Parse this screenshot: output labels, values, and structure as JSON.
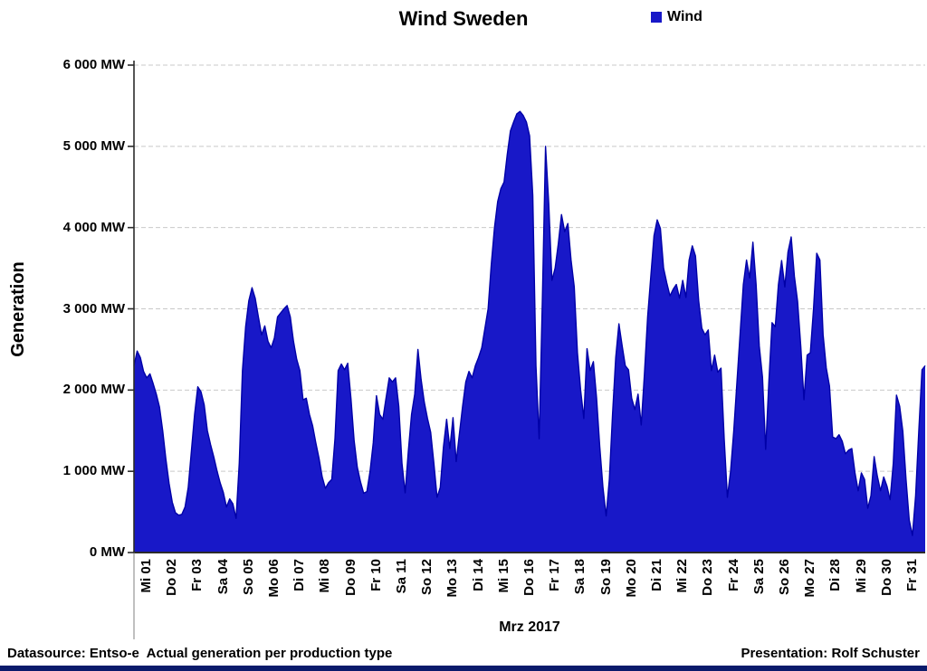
{
  "title": "Wind Sweden",
  "legend": {
    "label": "Wind",
    "color": "#1818C8"
  },
  "y_axis": {
    "title": "Generation",
    "tick_labels": [
      "6 000 MW",
      "5 000 MW",
      "4 000 MW",
      "3 000 MW",
      "2 000 MW",
      "1 000 MW",
      "0 MW"
    ]
  },
  "x_axis": {
    "title": "Mrz 2017",
    "tick_labels": [
      "Mi 01",
      "Do 02",
      "Fr 03",
      "Sa 04",
      "So 05",
      "Mo 06",
      "Di 07",
      "Mi 08",
      "Do 09",
      "Fr 10",
      "Sa 11",
      "So 12",
      "Mo 13",
      "Di 14",
      "Mi 15",
      "Do 16",
      "Fr 17",
      "Sa 18",
      "So 19",
      "Mo 20",
      "Di 21",
      "Mi 22",
      "Do 23",
      "Fr 24",
      "Sa 25",
      "So 26",
      "Mo 27",
      "Di 28",
      "Mi 29",
      "Do 30",
      "Fr 31"
    ]
  },
  "footer": {
    "left": "Datasource: Entso-e  Actual generation per production type",
    "right": "Presentation: Rolf Schuster"
  },
  "colors": {
    "area_fill": "#1818C8",
    "area_edge": "#0000A8",
    "gridline": "#C9C9C9",
    "axis": "#2B2B2B",
    "bottom_bar": "#0A1A6B"
  },
  "chart_data": {
    "type": "area",
    "title": "Wind Sweden",
    "xlabel": "Mrz 2017",
    "ylabel": "Generation",
    "unit": "MW",
    "ylim": [
      0,
      6000
    ],
    "y_ticks": [
      0,
      1000,
      2000,
      3000,
      4000,
      5000,
      6000
    ],
    "grid": "dashed horizontal",
    "legend_position": "top-right",
    "categories": [
      "Mi 01",
      "Do 02",
      "Fr 03",
      "Sa 04",
      "So 05",
      "Mo 06",
      "Di 07",
      "Mi 08",
      "Do 09",
      "Fr 10",
      "Sa 11",
      "So 12",
      "Mo 13",
      "Di 14",
      "Mi 15",
      "Do 16",
      "Fr 17",
      "Sa 18",
      "So 19",
      "Mo 20",
      "Di 21",
      "Mi 22",
      "Do 23",
      "Fr 24",
      "Sa 25",
      "So 26",
      "Mo 27",
      "Di 28",
      "Mi 29",
      "Do 30",
      "Fr 31"
    ],
    "points_per_day": 8,
    "series": [
      {
        "name": "Wind",
        "values": [
          2300,
          2480,
          2400,
          2230,
          2150,
          2200,
          2080,
          1950,
          1790,
          1500,
          1150,
          850,
          620,
          490,
          460,
          470,
          560,
          800,
          1250,
          1700,
          2040,
          1980,
          1820,
          1500,
          1330,
          1180,
          1010,
          860,
          740,
          560,
          660,
          600,
          420,
          1100,
          2240,
          2780,
          3100,
          3260,
          3130,
          2900,
          2680,
          2790,
          2600,
          2520,
          2640,
          2900,
          2950,
          3000,
          3040,
          2900,
          2600,
          2380,
          2240,
          1880,
          1900,
          1700,
          1560,
          1350,
          1160,
          930,
          790,
          860,
          900,
          1400,
          2240,
          2320,
          2250,
          2330,
          1900,
          1380,
          1050,
          870,
          730,
          750,
          1000,
          1350,
          1930,
          1700,
          1640,
          1900,
          2150,
          2100,
          2150,
          1800,
          1100,
          735,
          1250,
          1700,
          1950,
          2500,
          2130,
          1850,
          1650,
          1480,
          1100,
          680,
          800,
          1300,
          1640,
          1280,
          1660,
          1120,
          1460,
          1800,
          2100,
          2230,
          2150,
          2300,
          2400,
          2520,
          2760,
          3000,
          3550,
          4000,
          4320,
          4480,
          4560,
          4900,
          5190,
          5300,
          5400,
          5430,
          5380,
          5300,
          5130,
          4400,
          2300,
          1400,
          3100,
          5000,
          4300,
          3350,
          3500,
          3800,
          4160,
          3950,
          4050,
          3600,
          3270,
          2460,
          2000,
          1650,
          2510,
          2240,
          2350,
          1900,
          1300,
          800,
          450,
          900,
          1700,
          2400,
          2815,
          2550,
          2300,
          2250,
          1900,
          1760,
          1950,
          1570,
          2200,
          2900,
          3400,
          3900,
          4095,
          3990,
          3500,
          3320,
          3160,
          3240,
          3300,
          3130,
          3350,
          3140,
          3600,
          3775,
          3650,
          3100,
          2760,
          2680,
          2740,
          2240,
          2430,
          2220,
          2270,
          1400,
          680,
          1000,
          1500,
          2100,
          2700,
          3300,
          3600,
          3380,
          3820,
          3300,
          2540,
          2160,
          1270,
          2100,
          2830,
          2780,
          3300,
          3595,
          3270,
          3700,
          3885,
          3400,
          3094,
          2540,
          1881,
          2430,
          2460,
          3000,
          3684,
          3600,
          2682,
          2271,
          2050,
          1425,
          1400,
          1450,
          1370,
          1215,
          1260,
          1280,
          980,
          760,
          980,
          900,
          545,
          700,
          1180,
          940,
          760,
          930,
          820,
          650,
          1100,
          1937,
          1800,
          1490,
          900,
          400,
          210,
          700,
          1500,
          2250,
          2300
        ]
      }
    ]
  }
}
